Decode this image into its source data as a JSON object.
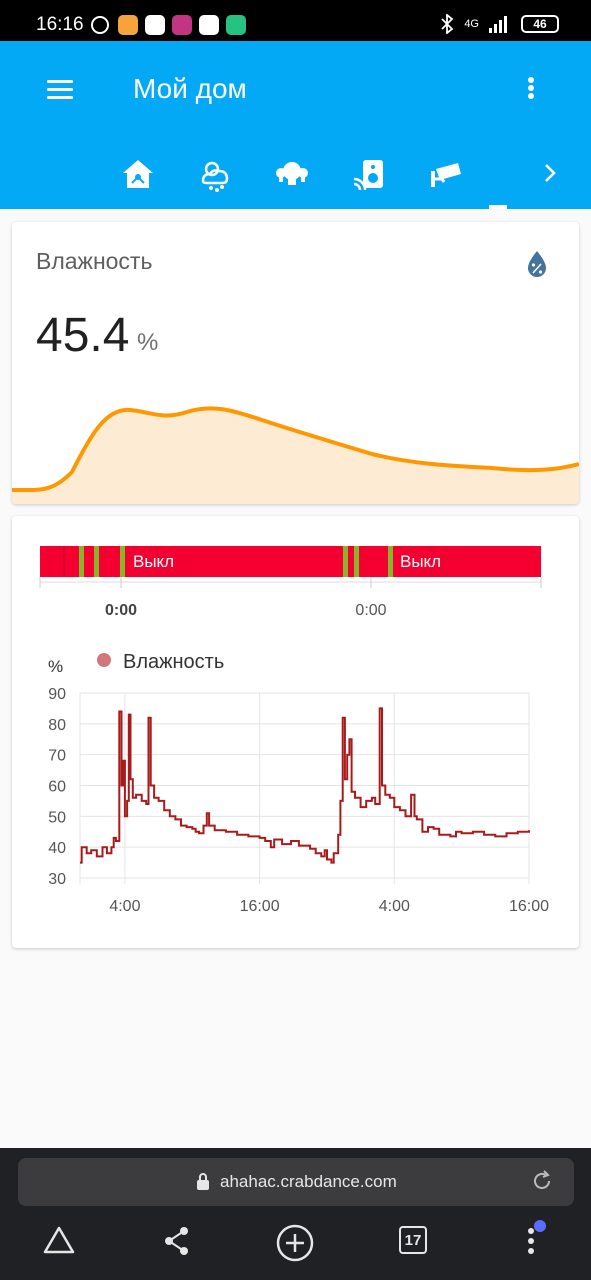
{
  "status_bar": {
    "time": "16:16",
    "network": "4G",
    "battery": "46"
  },
  "app": {
    "title": "Мой дом"
  },
  "tabs": [
    {
      "icon": "home-automation-icon"
    },
    {
      "icon": "weather-snowy-icon"
    },
    {
      "icon": "lightbulbs-icon"
    },
    {
      "icon": "speaker-wireless-icon"
    },
    {
      "icon": "cctv-icon"
    }
  ],
  "sensor_card": {
    "name": "Влажность",
    "value": "45.4",
    "unit": "%",
    "icon": "water-percent-icon",
    "colors": {
      "line": "#ff9800",
      "fill": "#fdebd3"
    }
  },
  "history_card": {
    "timeline": {
      "labels": [
        "Выкл",
        "Выкл"
      ],
      "ticks": [
        "0:00",
        "0:00"
      ],
      "colors": {
        "off": "#f40030",
        "on": "#8bb32b"
      }
    },
    "chart": {
      "legend": "Влажность",
      "unit": "%"
    }
  },
  "chart_data": {
    "type": "line",
    "title": "",
    "ylabel": "%",
    "ylim": [
      30,
      90
    ],
    "yticks": [
      90,
      80,
      70,
      60,
      50,
      40,
      30
    ],
    "xticks": [
      "4:00",
      "16:00",
      "4:00",
      "16:00"
    ],
    "xlim_hours": [
      0,
      40
    ],
    "series": [
      {
        "name": "Влажность",
        "color": "#a91b1b",
        "points": [
          [
            0,
            35
          ],
          [
            0.15,
            40
          ],
          [
            0.6,
            38
          ],
          [
            1.0,
            39
          ],
          [
            1.5,
            37
          ],
          [
            2.0,
            40
          ],
          [
            2.4,
            38
          ],
          [
            2.8,
            40
          ],
          [
            3.0,
            43
          ],
          [
            3.2,
            42
          ],
          [
            3.5,
            84
          ],
          [
            3.7,
            60
          ],
          [
            3.85,
            68
          ],
          [
            4.0,
            50
          ],
          [
            4.2,
            55
          ],
          [
            4.35,
            83
          ],
          [
            4.5,
            62
          ],
          [
            4.7,
            56
          ],
          [
            5.0,
            57
          ],
          [
            5.5,
            55
          ],
          [
            5.9,
            54
          ],
          [
            6.1,
            82
          ],
          [
            6.3,
            60
          ],
          [
            6.6,
            56
          ],
          [
            7.0,
            55
          ],
          [
            7.5,
            52
          ],
          [
            8.0,
            50
          ],
          [
            8.5,
            49
          ],
          [
            9.0,
            47
          ],
          [
            9.5,
            46.5
          ],
          [
            10.0,
            46
          ],
          [
            10.3,
            45
          ],
          [
            10.6,
            44.5
          ],
          [
            11.0,
            47
          ],
          [
            11.3,
            51
          ],
          [
            11.5,
            47
          ],
          [
            12.0,
            45.5
          ],
          [
            13.0,
            45
          ],
          [
            14.0,
            44
          ],
          [
            15.0,
            43.5
          ],
          [
            16.0,
            43
          ],
          [
            16.5,
            42
          ],
          [
            17.0,
            40
          ],
          [
            17.3,
            42.5
          ],
          [
            18.0,
            41
          ],
          [
            18.8,
            42
          ],
          [
            19.5,
            40.5
          ],
          [
            20.5,
            39.5
          ],
          [
            21.0,
            38
          ],
          [
            21.5,
            37
          ],
          [
            21.8,
            39
          ],
          [
            22.0,
            36
          ],
          [
            22.4,
            35
          ],
          [
            22.6,
            38
          ],
          [
            23.0,
            44
          ],
          [
            23.2,
            55
          ],
          [
            23.4,
            82
          ],
          [
            23.6,
            62
          ],
          [
            23.8,
            70
          ],
          [
            24.0,
            75
          ],
          [
            24.2,
            58
          ],
          [
            24.5,
            56
          ],
          [
            25.0,
            53
          ],
          [
            25.5,
            55
          ],
          [
            26.0,
            56
          ],
          [
            26.3,
            54
          ],
          [
            26.7,
            85
          ],
          [
            26.9,
            60
          ],
          [
            27.2,
            57
          ],
          [
            27.6,
            56
          ],
          [
            28.0,
            53
          ],
          [
            28.5,
            52
          ],
          [
            29.0,
            50
          ],
          [
            29.5,
            57
          ],
          [
            29.8,
            50
          ],
          [
            30.0,
            49
          ],
          [
            30.5,
            45
          ],
          [
            31.0,
            46.5
          ],
          [
            31.5,
            46
          ],
          [
            32.0,
            44
          ],
          [
            33.0,
            43.5
          ],
          [
            33.5,
            45
          ],
          [
            34.0,
            44.5
          ],
          [
            35.0,
            45
          ],
          [
            36.0,
            44
          ],
          [
            37.0,
            43.5
          ],
          [
            38.0,
            44.5
          ],
          [
            39.0,
            45
          ],
          [
            40.0,
            45.5
          ]
        ]
      }
    ]
  }
}
